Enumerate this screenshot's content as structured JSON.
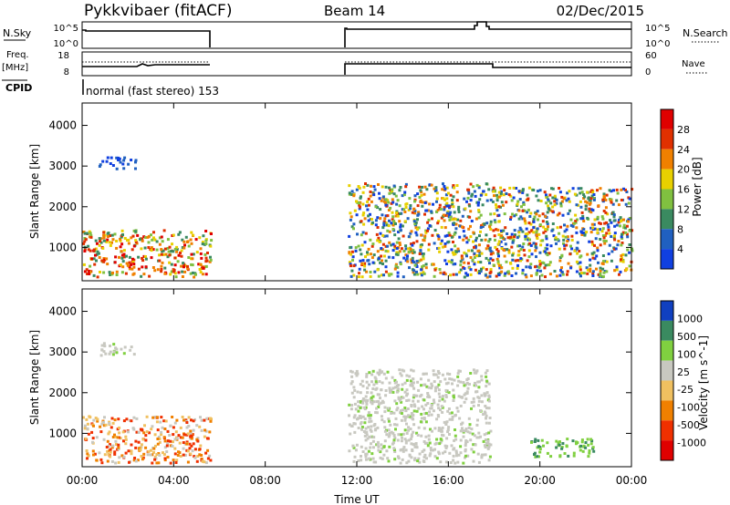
{
  "header": {
    "title": "Pykkvibaer (fitACF)",
    "beam": "Beam 14",
    "date": "02/Dec/2015"
  },
  "status_panels": {
    "nsky_label": "N.Sky",
    "nsearch_label": "N.Search",
    "freq_label_1": "Freq.",
    "freq_label_2": "[MHz]",
    "nave_label": "Nave",
    "cpid_label": "CPID",
    "cpid_text": "normal (fast stereo) 153",
    "nsky_ticks": [
      "10^5",
      "10^0"
    ],
    "nsearch_ticks": [
      "10^5",
      "10^0"
    ],
    "freq_ticks": [
      "18",
      "8"
    ],
    "nave_ticks": [
      "60",
      "0"
    ]
  },
  "x_axis": {
    "label": "Time UT",
    "ticks": [
      "00:00",
      "04:00",
      "08:00",
      "12:00",
      "16:00",
      "20:00",
      "00:00"
    ]
  },
  "colors": {
    "power": [
      "#1040e0",
      "#2060c0",
      "#3a8a60",
      "#80c040",
      "#e8d000",
      "#f08000",
      "#e03000",
      "#e00000"
    ],
    "velocity": [
      "#e00000",
      "#f03000",
      "#f08000",
      "#f0c060",
      "#c8c8c0",
      "#80d040",
      "#3a8a60",
      "#1040c0"
    ]
  },
  "chart_data": [
    {
      "type": "heatmap",
      "panel": "power",
      "ylabel": "Slant Range [km]",
      "ylim": [
        180,
        4550
      ],
      "yticks": [
        "4000",
        "3000",
        "2000",
        "1000"
      ],
      "xlim": [
        0,
        24
      ],
      "colorbar": {
        "label": "Power [dB]",
        "ticks": [
          "28",
          "24",
          "20",
          "16",
          "12",
          "8",
          "4"
        ]
      },
      "scatter_regions": [
        {
          "t": [
            0.0,
            5.6
          ],
          "range": [
            300,
            1450
          ],
          "level": "high"
        },
        {
          "t": [
            0.7,
            2.3
          ],
          "range": [
            2950,
            3250
          ],
          "level": "low"
        },
        {
          "t": [
            11.6,
            17.8
          ],
          "range": [
            300,
            2600
          ],
          "level": "medium"
        },
        {
          "t": [
            17.8,
            24.0
          ],
          "range": [
            300,
            2500
          ],
          "level": "medium"
        }
      ]
    },
    {
      "type": "heatmap",
      "panel": "velocity",
      "ylabel": "Slant Range [km]",
      "ylim": [
        180,
        4550
      ],
      "yticks": [
        "4000",
        "3000",
        "2000",
        "1000"
      ],
      "xlim": [
        0,
        24
      ],
      "colorbar": {
        "label": "Velocity [m s^-1]",
        "ticks": [
          "1000",
          "500",
          "100",
          "25",
          "-25",
          "-100",
          "-500",
          "-1000"
        ]
      },
      "scatter_regions": [
        {
          "t": [
            0.0,
            5.6
          ],
          "range": [
            300,
            1450
          ],
          "level": "negative"
        },
        {
          "t": [
            0.7,
            2.3
          ],
          "range": [
            2950,
            3250
          ],
          "level": "near-zero"
        },
        {
          "t": [
            11.6,
            17.8
          ],
          "range": [
            300,
            2600
          ],
          "level": "near-zero"
        },
        {
          "t": [
            19.5,
            22.3
          ],
          "range": [
            450,
            900
          ],
          "level": "positive"
        }
      ]
    }
  ]
}
